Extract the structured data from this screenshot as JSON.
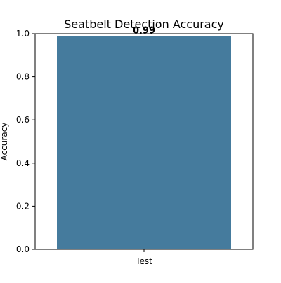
{
  "chart_data": {
    "type": "bar",
    "title": "Seatbelt Detection Accuracy",
    "xlabel": "",
    "ylabel": "Accuracy",
    "categories": [
      "Test"
    ],
    "values": [
      0.99
    ],
    "data_labels": [
      "0.99"
    ],
    "ylim": [
      0,
      1.0
    ],
    "yticks": [
      0.0,
      0.2,
      0.4,
      0.6,
      0.8,
      1.0
    ],
    "ytick_labels": [
      "0.0",
      "0.2",
      "0.4",
      "0.6",
      "0.8",
      "1.0"
    ],
    "grid": false,
    "legend": "none",
    "bar_color": "#457b9d"
  }
}
